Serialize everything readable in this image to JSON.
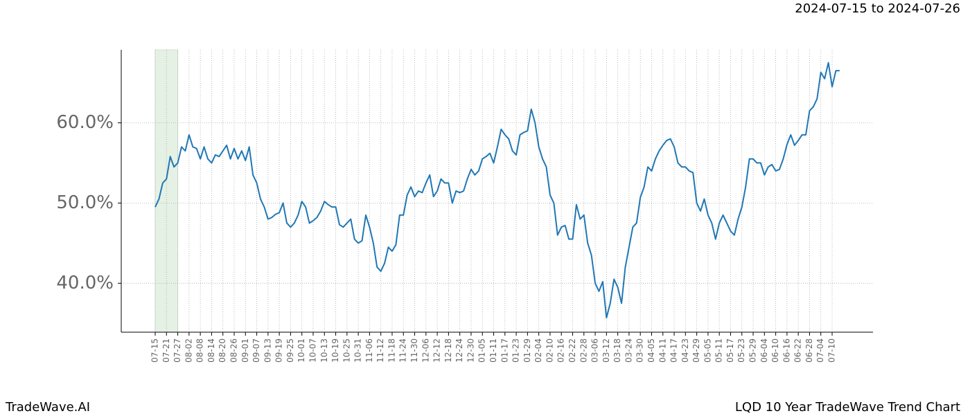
{
  "chart_data": {
    "type": "line",
    "subtitle": "2024-07-15 to 2024-07-26",
    "source": "TradeWave.AI",
    "title": "LQD 10 Year TradeWave Trend Chart",
    "color": "#1f77b4",
    "grid": true,
    "categories": [
      "07-15",
      null,
      null,
      "07-21",
      null,
      null,
      "07-27",
      null,
      null,
      "08-02",
      null,
      null,
      "08-08",
      null,
      null,
      "08-14",
      null,
      null,
      "08-20",
      null,
      null,
      "08-26",
      null,
      null,
      "09-01",
      null,
      null,
      "09-07",
      null,
      null,
      "09-13",
      null,
      null,
      "09-19",
      null,
      null,
      "09-25",
      null,
      null,
      "10-01",
      null,
      null,
      "10-07",
      null,
      null,
      "10-13",
      null,
      null,
      "10-19",
      null,
      null,
      "10-25",
      null,
      null,
      "10-31",
      null,
      null,
      "11-06",
      null,
      null,
      "11-12",
      null,
      null,
      "11-18",
      null,
      null,
      "11-24",
      null,
      null,
      "11-30",
      null,
      null,
      "12-06",
      null,
      null,
      "12-12",
      null,
      null,
      "12-18",
      null,
      null,
      "12-24",
      null,
      null,
      "12-30",
      null,
      null,
      "01-05",
      null,
      null,
      "01-11",
      null,
      null,
      "01-17",
      null,
      null,
      "01-23",
      null,
      null,
      "01-29",
      null,
      null,
      "02-04",
      null,
      null,
      "02-10",
      null,
      null,
      "02-16",
      null,
      null,
      "02-22",
      null,
      null,
      "02-28",
      null,
      null,
      "03-06",
      null,
      null,
      "03-12",
      null,
      null,
      "03-18",
      null,
      null,
      "03-24",
      null,
      null,
      "03-30",
      null,
      null,
      "04-05",
      null,
      null,
      "04-11",
      null,
      null,
      "04-17",
      null,
      null,
      "04-23",
      null,
      null,
      "04-29",
      null,
      null,
      "05-05",
      null,
      null,
      "05-11",
      null,
      null,
      "05-17",
      null,
      null,
      "05-23",
      null,
      null,
      "05-29",
      null,
      null,
      "06-04",
      null,
      null,
      "06-10",
      null,
      null,
      "06-16",
      null,
      null,
      "06-22",
      null,
      null,
      "06-28",
      null,
      null,
      "07-04",
      null,
      null,
      "07-10",
      null,
      null
    ],
    "values": [
      49.5,
      50.5,
      52.5,
      53,
      55.8,
      54.5,
      55,
      57,
      56.5,
      58.5,
      57,
      56.8,
      55.5,
      57,
      55.5,
      55,
      56,
      55.8,
      56.5,
      57.2,
      55.5,
      56.8,
      55.5,
      56.5,
      55.3,
      57,
      53.5,
      52.5,
      50.5,
      49.5,
      48,
      48.2,
      48.6,
      48.8,
      50,
      47.5,
      47,
      47.5,
      48.5,
      50.2,
      49.5,
      47.5,
      47.8,
      48.2,
      49,
      50.2,
      49.8,
      49.5,
      49.5,
      47.3,
      47,
      47.5,
      48,
      45.5,
      45,
      45.3,
      48.5,
      47,
      45,
      42,
      41.5,
      42.5,
      44.5,
      44,
      44.8,
      48.5,
      48.5,
      51,
      52,
      50.8,
      51.5,
      51.3,
      52.5,
      53.5,
      50.8,
      51.5,
      53,
      52.5,
      52.5,
      50,
      51.5,
      51.3,
      51.5,
      53,
      54.2,
      53.5,
      54,
      55.5,
      55.8,
      56.2,
      55,
      57,
      59.2,
      58.5,
      58,
      56.5,
      56,
      58.5,
      58.8,
      59,
      61.7,
      60,
      57,
      55.5,
      54.5,
      51,
      50,
      46,
      47,
      47.2,
      45.5,
      45.5,
      49.8,
      48,
      48.5,
      45,
      43.5,
      40,
      39,
      40.2,
      35.7,
      37.5,
      40.5,
      39.5,
      37.5,
      42,
      44.5,
      47,
      47.5,
      50.7,
      52,
      54.5,
      54,
      55.5,
      56.5,
      57.2,
      57.8,
      58,
      57,
      55,
      54.5,
      54.5,
      54,
      53.8,
      50,
      49,
      50.5,
      48.5,
      47.5,
      45.5,
      47.5,
      48.5,
      47.5,
      46.5,
      46,
      48,
      49.5,
      52,
      55.5,
      55.5,
      55,
      55,
      53.5,
      54.5,
      54.8,
      54,
      54.2,
      55.5,
      57.3,
      58.5,
      57.2,
      57.8,
      58.5,
      58.5,
      61.5,
      62,
      63,
      66.3,
      65.5,
      67.5,
      64.5,
      66.5,
      66.5
    ],
    "ylim": [
      33.9,
      69.1
    ],
    "yticks": [
      {
        "value": 40,
        "label": "40.0%"
      },
      {
        "value": 50,
        "label": "50.0%"
      },
      {
        "value": 60,
        "label": "60.0%"
      }
    ]
  }
}
